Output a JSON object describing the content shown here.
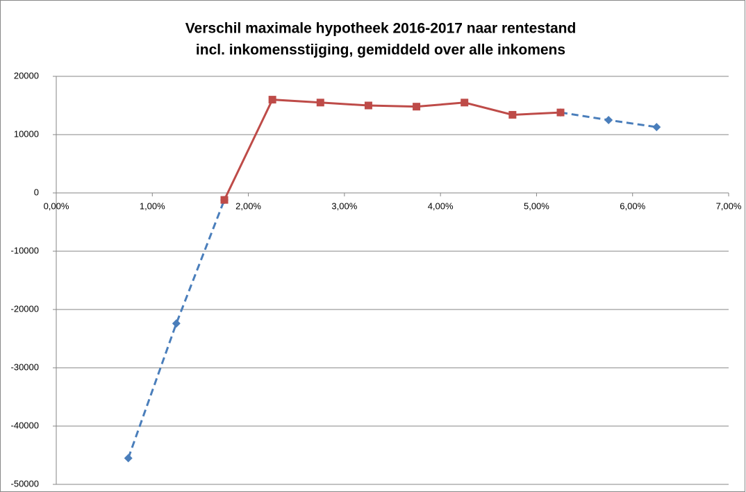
{
  "chart_data": {
    "type": "scatter",
    "title": [
      "Verschil maximale hypotheek 2016-2017 naar rentestand",
      "incl. inkomensstijging, gemiddeld over alle inkomens"
    ],
    "xlim": [
      0,
      7
    ],
    "xticks": [
      {
        "value": 0,
        "label": "0,00%"
      },
      {
        "value": 1,
        "label": "1,00%"
      },
      {
        "value": 2,
        "label": "2,00%"
      },
      {
        "value": 3,
        "label": "3,00%"
      },
      {
        "value": 4,
        "label": "4,00%"
      },
      {
        "value": 5,
        "label": "5,00%"
      },
      {
        "value": 6,
        "label": "6,00%"
      },
      {
        "value": 7,
        "label": "7,00%"
      }
    ],
    "ylim": [
      -50000,
      20000
    ],
    "yticks": [
      -50000,
      -40000,
      -30000,
      -20000,
      -10000,
      0,
      10000,
      20000
    ],
    "grid": true,
    "series": [
      {
        "color": "#4a7ebb",
        "line_style": "dashed",
        "marker": "diamond",
        "x": [
          0.75,
          1.25,
          1.75,
          2.25,
          2.75,
          3.25,
          3.75,
          4.25,
          4.75,
          5.25,
          5.75,
          6.25
        ],
        "values": [
          -45500,
          -22400,
          -1200,
          null,
          null,
          null,
          null,
          null,
          null,
          13800,
          12500,
          11300
        ]
      },
      {
        "color": "#be4b48",
        "line_style": "solid",
        "marker": "square",
        "x": [
          1.75,
          2.25,
          2.75,
          3.25,
          3.75,
          4.25,
          4.75,
          5.25
        ],
        "values": [
          -1200,
          16000,
          15500,
          15000,
          14800,
          15500,
          13400,
          13800
        ]
      }
    ]
  }
}
